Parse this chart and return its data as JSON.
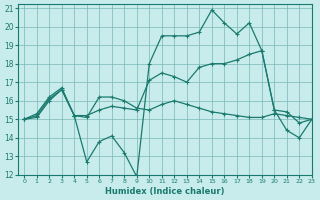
{
  "xlabel": "Humidex (Indice chaleur)",
  "bg_color": "#c8ecec",
  "grid_color": "#7ab8b8",
  "line_color": "#1a7a6e",
  "xlim": [
    -0.5,
    23
  ],
  "ylim": [
    12,
    21.2
  ],
  "yticks": [
    12,
    13,
    14,
    15,
    16,
    17,
    18,
    19,
    20,
    21
  ],
  "xticks": [
    0,
    1,
    2,
    3,
    4,
    5,
    6,
    7,
    8,
    9,
    10,
    11,
    12,
    13,
    14,
    15,
    16,
    17,
    18,
    19,
    20,
    21,
    22,
    23
  ],
  "series": [
    {
      "x": [
        0,
        1,
        2,
        3,
        4,
        5,
        6,
        7,
        8,
        9,
        10,
        11,
        12,
        13,
        14,
        15,
        16,
        17,
        18,
        19,
        20,
        21,
        22,
        23
      ],
      "y": [
        15.0,
        15.3,
        16.2,
        16.7,
        15.2,
        12.7,
        13.8,
        14.1,
        13.2,
        11.9,
        18.0,
        19.5,
        19.5,
        19.5,
        19.7,
        20.9,
        20.2,
        19.6,
        20.2,
        18.7,
        15.5,
        14.4,
        14.0,
        15.0
      ]
    },
    {
      "x": [
        0,
        1,
        2,
        3,
        4,
        5,
        6,
        7,
        8,
        9,
        10,
        11,
        12,
        13,
        14,
        15,
        16,
        17,
        18,
        19,
        20,
        21,
        22,
        23
      ],
      "y": [
        15.0,
        15.1,
        16.0,
        16.6,
        15.2,
        15.2,
        15.5,
        15.7,
        15.6,
        15.5,
        17.1,
        17.5,
        17.3,
        17.0,
        17.8,
        18.0,
        18.0,
        18.2,
        18.5,
        18.7,
        15.5,
        15.4,
        14.8,
        15.0
      ]
    },
    {
      "x": [
        0,
        1,
        2,
        3,
        4,
        5,
        6,
        7,
        8,
        9,
        10,
        11,
        12,
        13,
        14,
        15,
        16,
        17,
        18,
        19,
        20,
        21,
        22,
        23
      ],
      "y": [
        15.0,
        15.2,
        16.1,
        16.6,
        15.2,
        15.1,
        16.2,
        16.2,
        16.0,
        15.6,
        15.5,
        15.8,
        16.0,
        15.8,
        15.6,
        15.4,
        15.3,
        15.2,
        15.1,
        15.1,
        15.3,
        15.2,
        15.1,
        15.0
      ]
    }
  ]
}
